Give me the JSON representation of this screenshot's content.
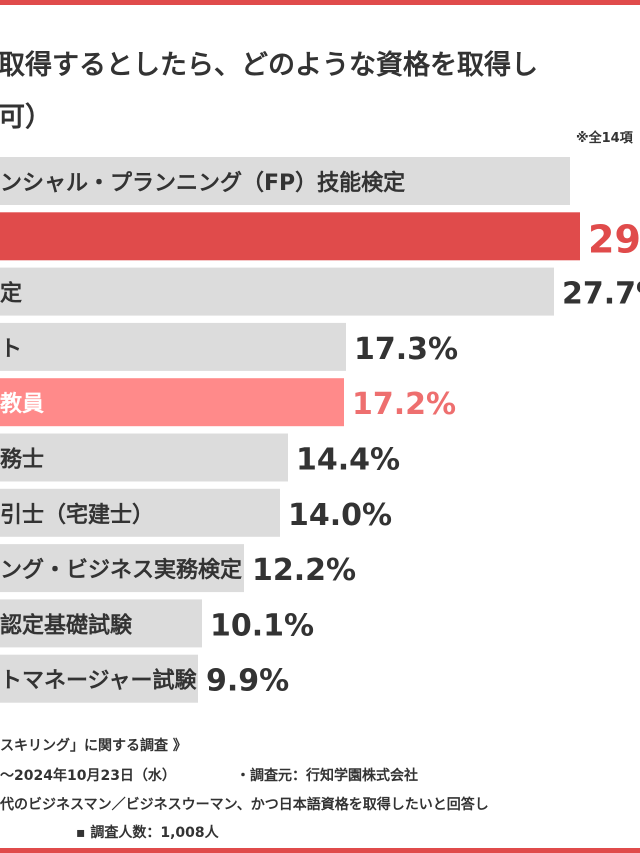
{
  "title": {
    "line1": "取得するとしたら、どのような資格を取得し",
    "line2": "可）"
  },
  "note": "※全14項",
  "chart_data": {
    "type": "bar",
    "orientation": "horizontal",
    "categories": [
      "ンシャル・プランニング（FP）技能検定",
      "",
      "定",
      "ト",
      "教員",
      "務士",
      "引士（宅建士）",
      "ング・ビジネス実務検定",
      "認定基礎試験",
      "トマネージャー試験"
    ],
    "labels": [
      "",
      "29",
      "27.7%",
      "17.3%",
      "17.2%",
      "14.4%",
      "14.0%",
      "12.2%",
      "10.1%",
      "9.9%"
    ],
    "values": [
      null,
      29.0,
      27.7,
      17.3,
      17.2,
      14.4,
      14.0,
      12.2,
      10.1,
      9.9
    ],
    "xlim": [
      0,
      30
    ],
    "colors": {
      "default": "#dcdcdc",
      "highlight": "#e04b4b",
      "accent": "#ff8a8a"
    },
    "highlight_index": 1,
    "accent_index": 4
  },
  "footer": {
    "survey_name": "スキリング」に関する調査 》",
    "period": "～2024年10月23日（水）",
    "source": "・調査元：行知学園株式会社",
    "target": "代のビジネスマン／ビジネスウーマン、かつ日本語資格を取得したいと回答し",
    "respondents": "▪ 調査人数：1,008人"
  }
}
